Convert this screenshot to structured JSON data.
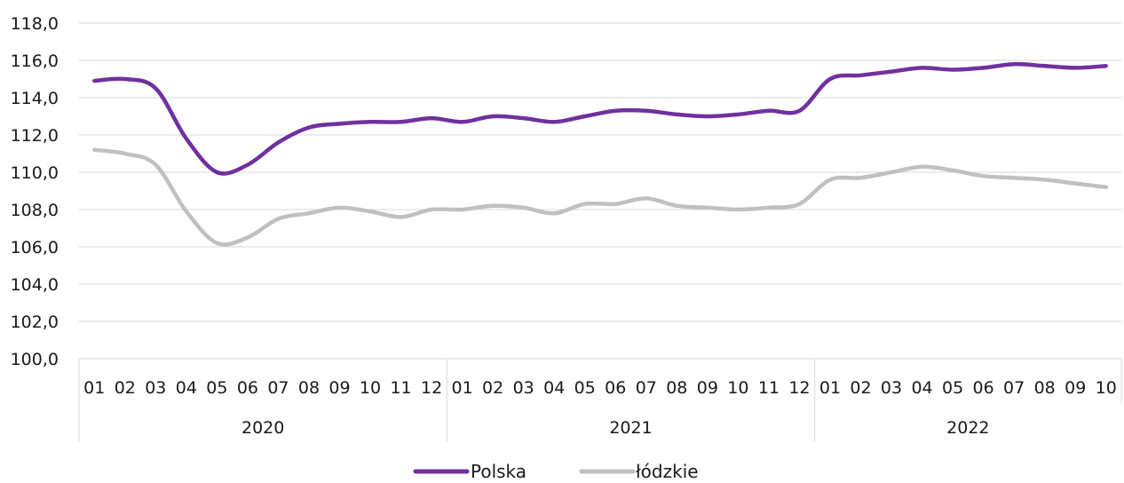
{
  "chart_data": {
    "type": "line",
    "title": "",
    "xlabel": "",
    "ylabel": "",
    "ylim": [
      100,
      118
    ],
    "yticks": [
      "100,0",
      "102,0",
      "104,0",
      "106,0",
      "108,0",
      "110,0",
      "112,0",
      "114,0",
      "116,0",
      "118,0"
    ],
    "grid": "horizontal",
    "legend_position": "bottom-center",
    "categories": [
      "01",
      "02",
      "03",
      "04",
      "05",
      "06",
      "07",
      "08",
      "09",
      "10",
      "11",
      "12",
      "01",
      "02",
      "03",
      "04",
      "05",
      "06",
      "07",
      "08",
      "09",
      "10",
      "11",
      "12",
      "01",
      "02",
      "03",
      "04",
      "05",
      "06",
      "07",
      "08",
      "09",
      "10"
    ],
    "years": [
      {
        "label": "2020",
        "months": 12
      },
      {
        "label": "2021",
        "months": 12
      },
      {
        "label": "2022",
        "months": 10
      }
    ],
    "series": [
      {
        "name": "Polska",
        "color": "#7030a0",
        "values": [
          114.9,
          115.0,
          114.5,
          111.8,
          110.0,
          110.4,
          111.6,
          112.4,
          112.6,
          112.7,
          112.7,
          112.9,
          112.7,
          113.0,
          112.9,
          112.7,
          113.0,
          113.3,
          113.3,
          113.1,
          113.0,
          113.1,
          113.3,
          113.3,
          115.0,
          115.2,
          115.4,
          115.6,
          115.5,
          115.6,
          115.8,
          115.7,
          115.6,
          115.7
        ]
      },
      {
        "name": "łódzkie",
        "color": "#c0c0c0",
        "values": [
          111.2,
          111.0,
          110.4,
          107.9,
          106.2,
          106.5,
          107.5,
          107.8,
          108.1,
          107.9,
          107.6,
          108.0,
          108.0,
          108.2,
          108.1,
          107.8,
          108.3,
          108.3,
          108.6,
          108.2,
          108.1,
          108.0,
          108.1,
          108.3,
          109.6,
          109.7,
          110.0,
          110.3,
          110.1,
          109.8,
          109.7,
          109.6,
          109.4,
          109.2
        ]
      }
    ]
  }
}
